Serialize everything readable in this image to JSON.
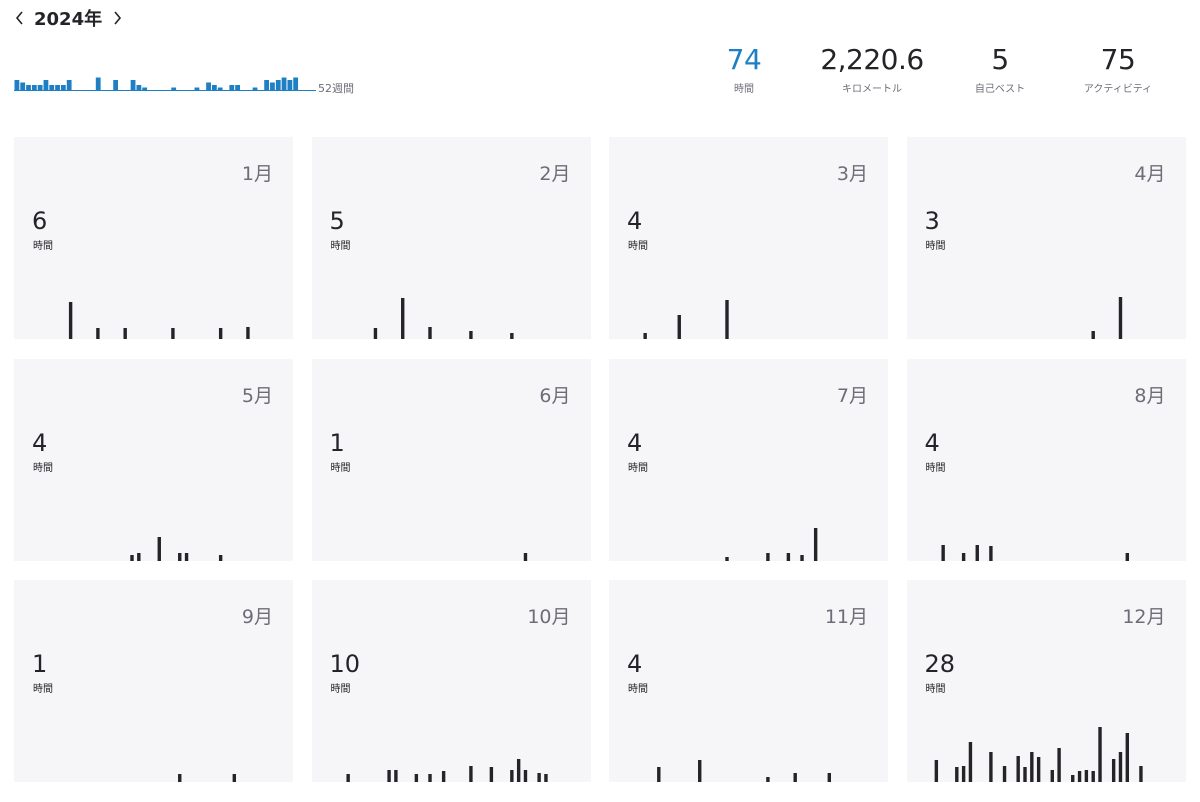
{
  "header": {
    "year": "2024年",
    "weeks_label": "52週間"
  },
  "stats": [
    {
      "value": "74",
      "unit": "時間",
      "highlight": true
    },
    {
      "value": "2,220.6",
      "unit": "キロメートル",
      "highlight": false
    },
    {
      "value": "5",
      "unit": "自己ベスト",
      "highlight": false
    },
    {
      "value": "75",
      "unit": "アクティビティ",
      "highlight": false
    }
  ],
  "colors": {
    "accent": "#1f7fc5",
    "bar": "#242428",
    "card_bg": "#f6f6f8",
    "muted": "#6d6d78"
  },
  "icons": {
    "prev": "chevron-left-icon",
    "next": "chevron-right-icon"
  },
  "chart_data": [
    {
      "type": "bar",
      "title": "",
      "x": [
        1,
        2,
        3,
        4,
        5,
        6,
        7,
        8,
        9,
        10,
        11,
        12,
        13,
        14,
        15,
        16,
        17,
        18,
        19,
        20,
        21,
        22,
        23,
        24,
        25,
        26,
        27,
        28,
        29,
        30,
        31,
        32,
        33,
        34,
        35,
        36,
        37,
        38,
        39,
        40,
        41,
        42,
        43,
        44,
        45,
        46,
        47,
        48,
        49,
        50,
        51,
        52
      ],
      "values": [
        2,
        1.5,
        1,
        1,
        1,
        2,
        1,
        1,
        1,
        2,
        0,
        0,
        0,
        0,
        2.5,
        0,
        0,
        2,
        0,
        0,
        2,
        1,
        0.5,
        0,
        0,
        0,
        0,
        0.5,
        0,
        0,
        0,
        0.5,
        0,
        1.5,
        1,
        0.5,
        0,
        1,
        1,
        0,
        0,
        0.5,
        0,
        2,
        1.5,
        2,
        2.5,
        2,
        2.5,
        0,
        0,
        0
      ],
      "ylim": [
        0,
        10
      ]
    },
    {
      "type": "bar",
      "month": "1月",
      "hours": "6",
      "unit": "時間",
      "days": [
        [
          7,
          3.7
        ],
        [
          11,
          1.1
        ],
        [
          15,
          1.1
        ],
        [
          22,
          1.1
        ],
        [
          29,
          1.1
        ],
        [
          33,
          1.2
        ]
      ]
    },
    {
      "type": "bar",
      "month": "2月",
      "hours": "5",
      "unit": "時間",
      "days": [
        [
          8,
          1.1
        ],
        [
          12,
          4.1
        ],
        [
          16,
          1.2
        ],
        [
          22,
          0.8
        ],
        [
          28,
          0.6
        ]
      ]
    },
    {
      "type": "bar",
      "month": "3月",
      "hours": "4",
      "unit": "時間",
      "days": [
        [
          4,
          0.6
        ],
        [
          9,
          2.4
        ],
        [
          16,
          3.9
        ]
      ]
    },
    {
      "type": "bar",
      "month": "4月",
      "hours": "3",
      "unit": "時間",
      "days": [
        [
          26,
          0.8
        ],
        [
          30,
          4.2
        ]
      ]
    },
    {
      "type": "bar",
      "month": "5月",
      "hours": "4",
      "unit": "時間",
      "days": [
        [
          16,
          0.6
        ],
        [
          17,
          0.8
        ],
        [
          20,
          2.4
        ],
        [
          23,
          0.8
        ],
        [
          24,
          0.8
        ],
        [
          29,
          0.6
        ]
      ]
    },
    {
      "type": "bar",
      "month": "6月",
      "hours": "1",
      "unit": "時間",
      "days": [
        [
          30,
          0.8
        ]
      ]
    },
    {
      "type": "bar",
      "month": "7月",
      "hours": "4",
      "unit": "時間",
      "days": [
        [
          16,
          0.4
        ],
        [
          22,
          0.8
        ],
        [
          25,
          0.8
        ],
        [
          27,
          0.6
        ],
        [
          29,
          3.3
        ]
      ]
    },
    {
      "type": "bar",
      "month": "8月",
      "hours": "4",
      "unit": "時間",
      "days": [
        [
          4,
          1.6
        ],
        [
          7,
          0.8
        ],
        [
          9,
          1.6
        ],
        [
          11,
          1.5
        ],
        [
          31,
          0.8
        ]
      ]
    },
    {
      "type": "bar",
      "month": "9月",
      "hours": "1",
      "unit": "時間",
      "days": [
        [
          23,
          0.8
        ],
        [
          31,
          0.8
        ]
      ]
    },
    {
      "type": "bar",
      "month": "10月",
      "hours": "10",
      "unit": "時間",
      "days": [
        [
          4,
          0.8
        ],
        [
          10,
          1.2
        ],
        [
          11,
          1.2
        ],
        [
          14,
          0.8
        ],
        [
          16,
          0.8
        ],
        [
          18,
          1.1
        ],
        [
          22,
          1.6
        ],
        [
          25,
          1.5
        ],
        [
          28,
          1.2
        ],
        [
          29,
          2.3
        ],
        [
          30,
          1.2
        ],
        [
          32,
          0.9
        ],
        [
          33,
          0.8
        ]
      ]
    },
    {
      "type": "bar",
      "month": "11月",
      "hours": "4",
      "unit": "時間",
      "days": [
        [
          6,
          1.5
        ],
        [
          12,
          2.2
        ],
        [
          22,
          0.5
        ],
        [
          26,
          0.9
        ],
        [
          31,
          0.9
        ]
      ]
    },
    {
      "type": "bar",
      "month": "12月",
      "hours": "28",
      "unit": "時間",
      "days": [
        [
          3,
          2.2
        ],
        [
          6,
          1.5
        ],
        [
          7,
          1.6
        ],
        [
          8,
          4
        ],
        [
          11,
          3
        ],
        [
          13,
          1.6
        ],
        [
          15,
          2.6
        ],
        [
          16,
          1.5
        ],
        [
          17,
          3
        ],
        [
          18,
          2.5
        ],
        [
          20,
          1.2
        ],
        [
          21,
          3.4
        ],
        [
          23,
          0.7
        ],
        [
          24,
          1.1
        ],
        [
          25,
          1.2
        ],
        [
          26,
          1.1
        ],
        [
          27,
          5.5
        ],
        [
          29,
          2.3
        ],
        [
          30,
          3
        ],
        [
          31,
          4.9
        ],
        [
          33,
          1.6
        ]
      ]
    }
  ]
}
